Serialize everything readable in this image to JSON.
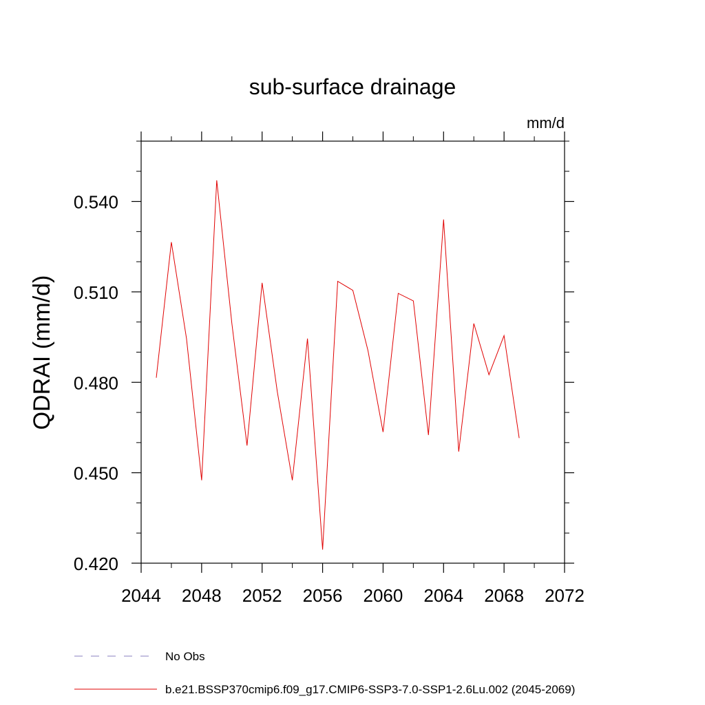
{
  "chart_data": {
    "type": "line",
    "title": "sub-surface drainage",
    "units": "mm/d",
    "xlabel": "",
    "ylabel": "QDRAI  (mm/d)",
    "xlim": [
      2044,
      2072
    ],
    "ylim": [
      0.42,
      0.56
    ],
    "x_ticks": [
      2044,
      2048,
      2052,
      2056,
      2060,
      2064,
      2068,
      2072
    ],
    "y_ticks": [
      "0.420",
      "0.450",
      "0.480",
      "0.510",
      "0.540"
    ],
    "y_tick_values": [
      0.42,
      0.45,
      0.48,
      0.51,
      0.54
    ],
    "grid": false,
    "legend_placement": "bottom",
    "legend": [
      {
        "name": "No Obs",
        "color": "#8a7fc0",
        "dash": "dashed"
      },
      {
        "name": "b.e21.BSSP370cmip6.f09_g17.CMIP6-SSP3-7.0-SSP1-2.6Lu.002 (2045-2069)",
        "color": "#e00000",
        "dash": "solid"
      }
    ],
    "series": [
      {
        "name": "b.e21.BSSP370cmip6.f09_g17.CMIP6-SSP3-7.0-SSP1-2.6Lu.002 (2045-2069)",
        "color": "#e00000",
        "x": [
          2045,
          2046,
          2047,
          2048,
          2049,
          2050,
          2051,
          2052,
          2053,
          2054,
          2055,
          2056,
          2057,
          2058,
          2059,
          2060,
          2061,
          2062,
          2063,
          2064,
          2065,
          2066,
          2067,
          2068,
          2069
        ],
        "values": [
          0.4815,
          0.5265,
          0.4945,
          0.4475,
          0.547,
          0.4995,
          0.459,
          0.513,
          0.477,
          0.4475,
          0.4945,
          0.4245,
          0.5135,
          0.5105,
          0.4905,
          0.4635,
          0.5095,
          0.507,
          0.4625,
          0.534,
          0.457,
          0.4995,
          0.4825,
          0.4955,
          0.4615
        ]
      }
    ]
  }
}
